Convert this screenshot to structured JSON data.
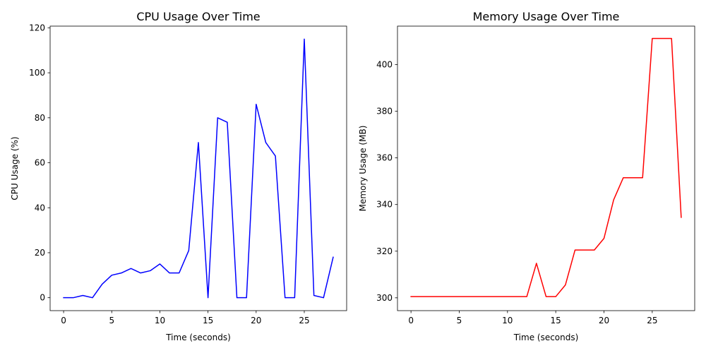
{
  "chart_data": [
    {
      "type": "line",
      "title": "CPU Usage Over Time",
      "xlabel": "Time (seconds)",
      "ylabel": "CPU Usage (%)",
      "xlim": [
        -1.4,
        29.4
      ],
      "ylim": [
        -5.75,
        120.75
      ],
      "xticks": [
        0,
        5,
        10,
        15,
        20,
        25
      ],
      "yticks": [
        0,
        20,
        40,
        60,
        80,
        100,
        120
      ],
      "grid": false,
      "series": [
        {
          "color": "#0000ff",
          "x": [
            0,
            1,
            2,
            3,
            4,
            5,
            6,
            7,
            8,
            9,
            10,
            11,
            12,
            13,
            14,
            15,
            16,
            17,
            18,
            19,
            20,
            21,
            22,
            23,
            24,
            25,
            26,
            27,
            28
          ],
          "y": [
            0,
            0,
            1,
            0,
            6,
            10,
            11,
            13,
            11,
            12,
            15,
            11,
            11,
            21,
            69,
            0,
            80,
            78,
            0,
            0,
            86,
            69,
            63,
            0,
            0,
            115,
            1,
            0,
            18
          ]
        }
      ]
    },
    {
      "type": "line",
      "title": "Memory Usage Over Time",
      "xlabel": "Time (seconds)",
      "ylabel": "Memory Usage (MB)",
      "xlim": [
        -1.4,
        29.4
      ],
      "ylim": [
        294.5,
        416.5
      ],
      "xticks": [
        0,
        5,
        10,
        15,
        20,
        25
      ],
      "yticks": [
        300,
        320,
        340,
        360,
        380,
        400
      ],
      "grid": false,
      "series": [
        {
          "color": "#ff0000",
          "x": [
            0,
            1,
            2,
            3,
            4,
            5,
            6,
            7,
            8,
            9,
            10,
            11,
            12,
            13,
            14,
            15,
            16,
            17,
            18,
            19,
            20,
            21,
            22,
            23,
            24,
            25,
            26,
            27,
            28
          ],
          "y": [
            300.5,
            300.5,
            300.5,
            300.5,
            300.5,
            300.5,
            300.5,
            300.5,
            300.5,
            300.5,
            300.5,
            300.5,
            300.5,
            314.8,
            300.5,
            300.5,
            305.5,
            320.5,
            320.5,
            320.5,
            325.5,
            342,
            351.5,
            351.5,
            351.5,
            411.2,
            411.2,
            411.2,
            334.5
          ]
        }
      ]
    }
  ]
}
